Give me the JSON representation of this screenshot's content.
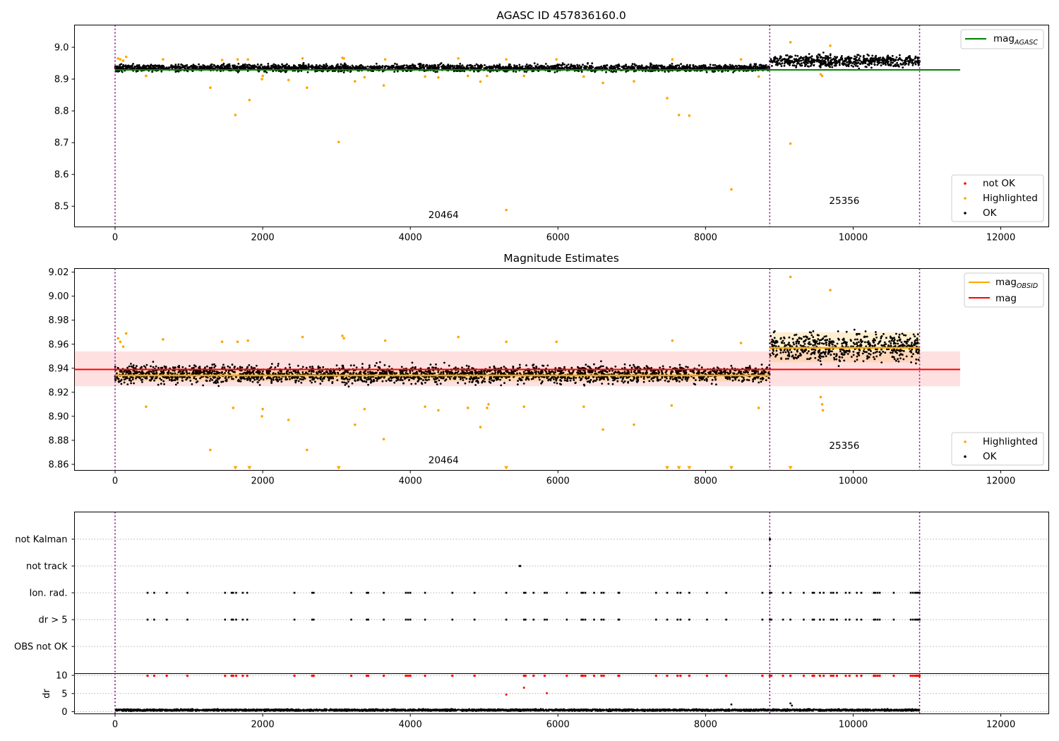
{
  "chart_data": [
    {
      "type": "scatter",
      "title": "AGASC ID 457836160.0",
      "xlim": [
        -550,
        12650
      ],
      "ylim": [
        8.435,
        9.07
      ],
      "xticks": [
        0,
        2000,
        4000,
        6000,
        8000,
        10000,
        12000
      ],
      "yticks": [
        8.5,
        8.6,
        8.7,
        8.8,
        8.9,
        9.0
      ],
      "legend_lines": [
        {
          "label": "mag",
          "sub": "AGASC",
          "color": "#008000",
          "placement": "top-right"
        }
      ],
      "legend_points": [
        {
          "label": "not OK",
          "color": "#ff0000"
        },
        {
          "label": "Highlighted",
          "color": "#ffa500"
        },
        {
          "label": "OK",
          "color": "#000000"
        }
      ],
      "legend_points_placement": "lower-right",
      "mag_agasc": 8.929,
      "mag_agasc_xrange": [
        0,
        11450
      ],
      "obs_boundaries": [
        0,
        8870,
        10900
      ],
      "observations": [
        {
          "obsid": "20464",
          "x": 4450,
          "y": 8.463
        },
        {
          "obsid": "25356",
          "x": 9880,
          "y": 8.507
        }
      ],
      "ok_series": [
        {
          "x_range": [
            0,
            8870
          ],
          "center": 8.935,
          "spread": 0.015
        },
        {
          "x_range": [
            8870,
            10900
          ],
          "center": 8.957,
          "spread": 0.025
        }
      ],
      "highlighted": [
        [
          40,
          8.965
        ],
        [
          70,
          8.962
        ],
        [
          110,
          8.958
        ],
        [
          150,
          8.97
        ],
        [
          420,
          8.91
        ],
        [
          650,
          8.962
        ],
        [
          1290,
          8.873
        ],
        [
          1450,
          8.96
        ],
        [
          1630,
          8.787
        ],
        [
          1660,
          8.962
        ],
        [
          1800,
          8.962
        ],
        [
          1820,
          8.834
        ],
        [
          1990,
          8.9
        ],
        [
          2000,
          8.91
        ],
        [
          2350,
          8.897
        ],
        [
          2540,
          8.965
        ],
        [
          2600,
          8.873
        ],
        [
          3030,
          8.702
        ],
        [
          3080,
          8.967
        ],
        [
          3100,
          8.965
        ],
        [
          3250,
          8.893
        ],
        [
          3380,
          8.906
        ],
        [
          3640,
          8.88
        ],
        [
          3660,
          8.962
        ],
        [
          4200,
          8.908
        ],
        [
          4380,
          8.905
        ],
        [
          4650,
          8.965
        ],
        [
          4780,
          8.91
        ],
        [
          4950,
          8.892
        ],
        [
          5040,
          8.91
        ],
        [
          5300,
          8.488
        ],
        [
          5300,
          8.962
        ],
        [
          5540,
          8.91
        ],
        [
          5980,
          8.962
        ],
        [
          6350,
          8.908
        ],
        [
          6610,
          8.888
        ],
        [
          7030,
          8.893
        ],
        [
          7480,
          8.84
        ],
        [
          7550,
          8.962
        ],
        [
          7640,
          8.787
        ],
        [
          7780,
          8.785
        ],
        [
          8350,
          8.553
        ],
        [
          8480,
          8.962
        ],
        [
          8720,
          8.908
        ],
        [
          9150,
          8.697
        ],
        [
          9150,
          9.016
        ],
        [
          9560,
          8.915
        ],
        [
          9580,
          8.91
        ],
        [
          9690,
          9.005
        ]
      ]
    },
    {
      "type": "scatter",
      "title": "Magnitude Estimates",
      "xlim": [
        -550,
        12650
      ],
      "ylim": [
        8.855,
        9.023
      ],
      "xticks": [
        0,
        2000,
        4000,
        6000,
        8000,
        10000,
        12000
      ],
      "yticks": [
        8.86,
        8.88,
        8.9,
        8.92,
        8.94,
        8.96,
        8.98,
        9.0,
        9.02
      ],
      "legend_lines": [
        {
          "label": "mag",
          "sub": "OBSID",
          "color": "#ffa500"
        },
        {
          "label": "mag",
          "sub": "",
          "color": "#ff0000"
        }
      ],
      "legend_points": [
        {
          "label": "Highlighted",
          "color": "#ffa500"
        },
        {
          "label": "OK",
          "color": "#000000"
        }
      ],
      "mag": 8.939,
      "mag_band": [
        8.925,
        8.954
      ],
      "mag_xrange": [
        -550,
        11450
      ],
      "mag_obsid": [
        {
          "x_range": [
            0,
            8870
          ],
          "value": 8.934,
          "band": [
            8.929,
            8.939
          ]
        },
        {
          "x_range": [
            8870,
            10900
          ],
          "value": 8.957,
          "band": [
            8.945,
            8.97
          ]
        }
      ],
      "obs_boundaries": [
        0,
        8870,
        10900
      ],
      "observations": [
        {
          "obsid": "20464",
          "x": 4450,
          "y": 8.861
        },
        {
          "obsid": "25356",
          "x": 9880,
          "y": 8.873
        }
      ],
      "ok_series": [
        {
          "x_range": [
            0,
            8870
          ],
          "center": 8.935,
          "spread": 0.01
        },
        {
          "x_range": [
            8870,
            10900
          ],
          "center": 8.958,
          "spread": 0.017
        }
      ],
      "highlighted": [
        [
          40,
          8.965
        ],
        [
          70,
          8.962
        ],
        [
          110,
          8.958
        ],
        [
          150,
          8.969
        ],
        [
          420,
          8.908
        ],
        [
          650,
          8.964
        ],
        [
          1290,
          8.872
        ],
        [
          1450,
          8.962
        ],
        [
          1600,
          8.907
        ],
        [
          1660,
          8.962
        ],
        [
          1800,
          8.963
        ],
        [
          1990,
          8.9
        ],
        [
          2000,
          8.906
        ],
        [
          2350,
          8.897
        ],
        [
          2540,
          8.966
        ],
        [
          2600,
          8.872
        ],
        [
          3080,
          8.967
        ],
        [
          3100,
          8.965
        ],
        [
          3250,
          8.893
        ],
        [
          3380,
          8.906
        ],
        [
          3640,
          8.881
        ],
        [
          3660,
          8.963
        ],
        [
          4200,
          8.908
        ],
        [
          4380,
          8.905
        ],
        [
          4650,
          8.966
        ],
        [
          4780,
          8.907
        ],
        [
          4950,
          8.891
        ],
        [
          5040,
          8.907
        ],
        [
          5060,
          8.91
        ],
        [
          5300,
          8.962
        ],
        [
          5540,
          8.908
        ],
        [
          5980,
          8.962
        ],
        [
          6350,
          8.908
        ],
        [
          6610,
          8.889
        ],
        [
          7030,
          8.893
        ],
        [
          7540,
          8.909
        ],
        [
          7550,
          8.963
        ],
        [
          8480,
          8.961
        ],
        [
          8720,
          8.907
        ],
        [
          9150,
          9.016
        ],
        [
          9560,
          8.916
        ],
        [
          9580,
          8.91
        ],
        [
          9590,
          8.905
        ],
        [
          9690,
          9.005
        ]
      ],
      "below_axis_markers": [
        1630,
        1820,
        3030,
        5300,
        7480,
        7640,
        7780,
        8350,
        9150
      ]
    },
    {
      "type": "scatter",
      "title": "",
      "xlim": [
        -550,
        12650
      ],
      "categories": [
        "not Kalman",
        "not track",
        "Ion. rad.",
        "dr > 5",
        "OBS not OK"
      ],
      "obs_boundaries": [
        0,
        8870,
        10900
      ],
      "flags": {
        "not Kalman": [
          8870,
          8875
        ],
        "not track": [
          5480,
          5490,
          8875
        ],
        "Ion. rad.": [
          440,
          530,
          700,
          980,
          1490,
          1580,
          1600,
          1640,
          1730,
          1790,
          2430,
          2670,
          2690,
          3200,
          3410,
          3430,
          3640,
          3940,
          3970,
          4000,
          4200,
          4570,
          4870,
          5300,
          5540,
          5560,
          5670,
          5820,
          5850,
          6120,
          6320,
          6340,
          6370,
          6490,
          6590,
          6620,
          6820,
          6830,
          7330,
          7480,
          7620,
          7660,
          7780,
          8020,
          8280,
          8770,
          8870,
          8890,
          9050,
          9150,
          9330,
          9450,
          9470,
          9550,
          9600,
          9700,
          9730,
          9780,
          9900,
          9950,
          10050,
          10110,
          10280,
          10300,
          10330,
          10360,
          10550,
          10780,
          10810,
          10840,
          10860,
          10880,
          10900
        ],
        "dr > 5": [
          440,
          530,
          700,
          980,
          1490,
          1580,
          1600,
          1640,
          1730,
          1790,
          2430,
          2670,
          2690,
          3200,
          3410,
          3430,
          3640,
          3940,
          3970,
          4000,
          4200,
          4570,
          4870,
          5300,
          5540,
          5560,
          5670,
          5820,
          5850,
          6120,
          6320,
          6340,
          6370,
          6490,
          6590,
          6620,
          6820,
          6830,
          7330,
          7480,
          7620,
          7660,
          7780,
          8020,
          8280,
          8770,
          8870,
          8890,
          9050,
          9150,
          9330,
          9450,
          9470,
          9550,
          9600,
          9700,
          9730,
          9780,
          9900,
          9950,
          10050,
          10110,
          10280,
          10300,
          10330,
          10360,
          10550,
          10780,
          10810,
          10840,
          10860,
          10880,
          10900
        ],
        "OBS not OK": []
      }
    },
    {
      "type": "scatter",
      "title": "",
      "ylabel": "dr",
      "xlim": [
        -550,
        12650
      ],
      "ylim": [
        -0.5,
        10.5
      ],
      "xticks": [
        0,
        2000,
        4000,
        6000,
        8000,
        10000,
        12000
      ],
      "yticks": [
        0,
        5,
        10
      ],
      "obs_boundaries": [
        0,
        8870,
        10900
      ],
      "ok_series": {
        "x_range": [
          0,
          10900
        ],
        "center": 0.45,
        "spread": 0.3
      },
      "ok_extra": [
        [
          8350,
          2.0
        ],
        [
          9150,
          2.3
        ],
        [
          9170,
          1.7
        ]
      ],
      "not_ok_clipped": [
        440,
        530,
        700,
        980,
        1490,
        1580,
        1600,
        1640,
        1730,
        1790,
        2430,
        2670,
        2690,
        3200,
        3410,
        3430,
        3640,
        3940,
        3970,
        4000,
        4200,
        4570,
        4870,
        5540,
        5560,
        5670,
        5820,
        6120,
        6320,
        6340,
        6370,
        6490,
        6590,
        6620,
        6820,
        6830,
        7330,
        7480,
        7620,
        7660,
        7780,
        8020,
        8280,
        8770,
        8870,
        8890,
        9050,
        9150,
        9330,
        9450,
        9470,
        9550,
        9600,
        9700,
        9730,
        9780,
        9900,
        9950,
        10050,
        10110,
        10280,
        10300,
        10330,
        10360,
        10550,
        10780,
        10810,
        10840,
        10860,
        10880,
        10900
      ],
      "not_ok": [
        [
          5300,
          4.7
        ],
        [
          5540,
          6.6
        ],
        [
          5850,
          5.1
        ]
      ]
    }
  ]
}
